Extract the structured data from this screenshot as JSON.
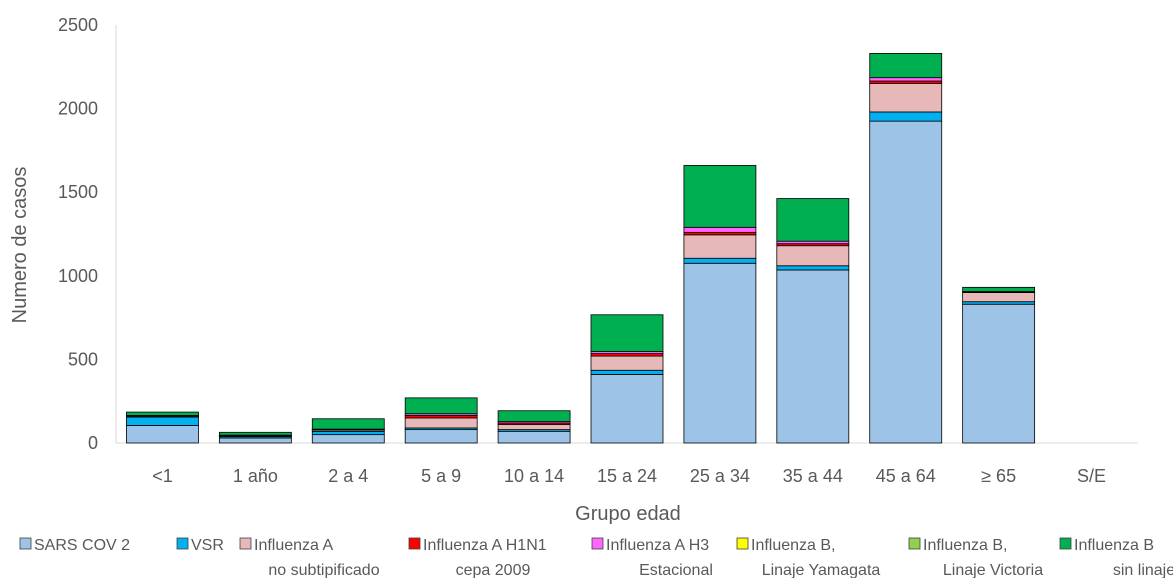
{
  "chart_data": {
    "type": "bar",
    "stacked": true,
    "title": "",
    "xlabel": "Grupo edad",
    "ylabel": "Numero de casos",
    "ylim": [
      0,
      2500
    ],
    "yticks": [
      0,
      500,
      1000,
      1500,
      2000,
      2500
    ],
    "grid": false,
    "legend_position": "bottom",
    "categories": [
      "<1",
      "1 año",
      "2 a 4",
      "5 a 9",
      "10 a 14",
      "15 a 24",
      "25 a 34",
      "35 a 44",
      "45 a 64",
      "≥ 65",
      "S/E"
    ],
    "series": [
      {
        "name": "SARS COV 2",
        "color": "#9DC3E6",
        "values": [
          105,
          30,
          50,
          80,
          70,
          410,
          1075,
          1035,
          1925,
          830,
          0
        ]
      },
      {
        "name": "VSR",
        "color": "#00B0F0",
        "values": [
          50,
          8,
          20,
          10,
          10,
          25,
          30,
          25,
          55,
          15,
          0
        ]
      },
      {
        "name": "Influenza A\nno subtipificado",
        "color": "#E6B9B8",
        "values": [
          5,
          5,
          8,
          60,
          30,
          85,
          140,
          120,
          170,
          55,
          0
        ]
      },
      {
        "name": "Influenza A H1N1\ncepa 2009",
        "color": "#FF0000",
        "values": [
          3,
          2,
          3,
          15,
          10,
          15,
          15,
          12,
          15,
          3,
          0
        ]
      },
      {
        "name": "Influenza A H3\nEstacional",
        "color": "#FF66FF",
        "values": [
          2,
          2,
          2,
          10,
          8,
          12,
          30,
          15,
          20,
          3,
          0
        ]
      },
      {
        "name": "Influenza B,\nLinaje Yamagata",
        "color": "#FFFF00",
        "values": [
          0,
          0,
          0,
          0,
          0,
          0,
          0,
          0,
          0,
          0,
          0
        ]
      },
      {
        "name": "Influenza B,\nLinaje Victoria",
        "color": "#92D050",
        "values": [
          0,
          0,
          0,
          0,
          0,
          0,
          0,
          0,
          0,
          0,
          0
        ]
      },
      {
        "name": "Influenza B\nsin linaje",
        "color": "#00B050",
        "values": [
          20,
          17,
          62,
          95,
          65,
          220,
          370,
          255,
          145,
          25,
          0
        ]
      }
    ]
  }
}
